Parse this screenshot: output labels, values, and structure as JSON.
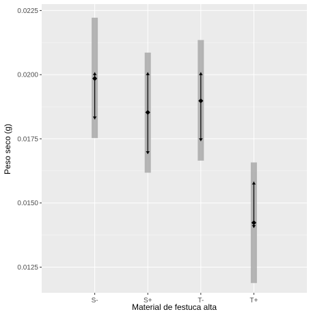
{
  "chart_data": {
    "type": "errorbar",
    "xlabel": "Material de festuca alta",
    "ylabel": "Peso seco (g)",
    "categories": [
      "S-",
      "S+",
      "T-",
      "T+"
    ],
    "means": [
      0.01985,
      0.01853,
      0.01898,
      0.01423
    ],
    "ci_low": [
      0.01753,
      0.01618,
      0.01665,
      0.01188
    ],
    "ci_high": [
      0.02222,
      0.02086,
      0.02135,
      0.01658
    ],
    "se_low": [
      0.01826,
      0.01691,
      0.01741,
      0.01403
    ],
    "se_high": [
      0.02009,
      0.02009,
      0.02009,
      0.01583
    ],
    "ylim": [
      0.0115,
      0.02275
    ],
    "yticks": [
      0.0125,
      0.015,
      0.0175,
      0.02,
      0.0225
    ],
    "ytick_labels": [
      "0.0125",
      "0.0150",
      "0.0175",
      "0.0200",
      "0.0225"
    ],
    "grid": true,
    "colors": {
      "panel": "#ebebeb",
      "grid_major": "#ffffff",
      "ci_bar": "#a9a9a9",
      "point": "#000000",
      "tick": "#333333"
    }
  }
}
